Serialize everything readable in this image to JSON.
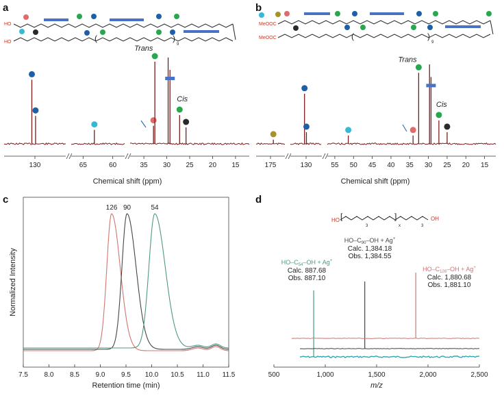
{
  "panels": {
    "a": "a",
    "b": "b",
    "c": "c",
    "d": "d"
  },
  "colors": {
    "spectrum": "#7a1a1a",
    "red": "#e26a6a",
    "blue_dark": "#1f5fa8",
    "cyan": "#36b9d6",
    "green": "#27a84f",
    "black": "#2a2a2a",
    "olive": "#a8922b",
    "bar": "#4a72c4",
    "c126": "#d0756f",
    "c90": "#444444",
    "c54": "#4d9a80",
    "ms_teal": "#2aa7b3"
  },
  "chart_data": [
    {
      "id": "a",
      "type": "line",
      "title": "",
      "xlabel": "Chemical shift (ppm)",
      "ylabel": "",
      "x_ticks": [
        "130",
        "65",
        "60",
        "35",
        "30",
        "25",
        "20",
        "15"
      ],
      "end_groups": [
        "HO",
        "HO"
      ],
      "repeat_subscript": "9",
      "labels": {
        "trans": "Trans",
        "cis": "Cis"
      },
      "peaks": [
        {
          "ppm": 130.5,
          "height": 0.78,
          "marker": "blue_dark"
        },
        {
          "ppm": 129.9,
          "height": 0.34,
          "marker": "blue_dark"
        },
        {
          "ppm": 63.1,
          "height": 0.17,
          "marker": "cyan"
        },
        {
          "ppm": 32.9,
          "height": 0.22,
          "marker": "red"
        },
        {
          "ppm": 32.6,
          "height": 1.0,
          "marker": "green",
          "label": "trans"
        },
        {
          "ppm": 29.7,
          "height": 1.05
        },
        {
          "ppm": 29.3,
          "height": 0.9,
          "marker": "bar"
        },
        {
          "ppm": 27.2,
          "height": 0.35,
          "marker": "green",
          "label": "cis"
        },
        {
          "ppm": 25.8,
          "height": 0.2,
          "marker": "black"
        }
      ]
    },
    {
      "id": "b",
      "type": "line",
      "title": "",
      "xlabel": "Chemical shift (ppm)",
      "ylabel": "",
      "x_ticks": [
        "175",
        "130",
        "55",
        "50",
        "45",
        "40",
        "35",
        "30",
        "25",
        "20",
        "15"
      ],
      "end_groups": [
        "MeOOC",
        "MeOOC"
      ],
      "repeat_subscript": "9",
      "labels": {
        "trans": "Trans",
        "cis": "Cis"
      },
      "peaks": [
        {
          "ppm": 174.0,
          "height": 0.05,
          "marker": "olive"
        },
        {
          "ppm": 130.5,
          "height": 0.6,
          "marker": "blue_dark"
        },
        {
          "ppm": 129.9,
          "height": 0.14,
          "marker": "blue_dark"
        },
        {
          "ppm": 51.4,
          "height": 0.1,
          "marker": "cyan"
        },
        {
          "ppm": 34.1,
          "height": 0.1,
          "marker": "red"
        },
        {
          "ppm": 32.6,
          "height": 0.85,
          "marker": "green",
          "label": "trans"
        },
        {
          "ppm": 29.7,
          "height": 0.95
        },
        {
          "ppm": 29.3,
          "height": 0.8,
          "marker": "bar"
        },
        {
          "ppm": 27.2,
          "height": 0.28,
          "marker": "green",
          "label": "cis"
        },
        {
          "ppm": 25.0,
          "height": 0.14,
          "marker": "black"
        }
      ]
    },
    {
      "id": "c",
      "type": "line",
      "title": "",
      "xlabel": "Retention time (min)",
      "ylabel": "Normalized Intensity",
      "xlim": [
        7.5,
        11.5
      ],
      "x_ticks": [
        "7.5",
        "8.0",
        "8.5",
        "9.0",
        "9.5",
        "10.0",
        "10.5",
        "11.0",
        "11.5"
      ],
      "series": [
        {
          "name": "126",
          "color_key": "c126",
          "peak": 9.22,
          "baseline": 0.0,
          "width": 0.19
        },
        {
          "name": "90",
          "color_key": "c90",
          "peak": 9.52,
          "baseline": 0.0,
          "width": 0.2
        },
        {
          "name": "54",
          "color_key": "c54",
          "peak": 10.06,
          "baseline": 0.0,
          "width": 0.23
        }
      ]
    },
    {
      "id": "d",
      "type": "line",
      "title": "",
      "xlabel": "m/z",
      "ylabel": "",
      "xlim": [
        500,
        2500
      ],
      "x_ticks": [
        "500",
        "1,000",
        "1,500",
        "2,000",
        "2,500"
      ],
      "structure": {
        "left": "HO",
        "right": "OH",
        "sub_a": "3",
        "sub_b": "x",
        "sub_c": "3"
      },
      "series": [
        {
          "label_main": "HO–C",
          "label_sub": "54",
          "label_rest": "–OH + Ag",
          "label_sup": "+",
          "calc": "Calc. 887.68",
          "obs": "Obs. 887.10",
          "mz": 887.1,
          "color_key": "c54"
        },
        {
          "label_main": "HO–C",
          "label_sub": "90",
          "label_rest": "–OH + Ag",
          "label_sup": "+",
          "calc": "Calc. 1,384.18",
          "obs": "Obs. 1,384.55",
          "mz": 1384.55,
          "color_key": "c90"
        },
        {
          "label_main": "HO–C",
          "label_sub": "126",
          "label_rest": "–OH + Ag",
          "label_sup": "+",
          "calc": "Calc. 1,880.68",
          "obs": "Obs. 1,881.10",
          "mz": 1881.1,
          "color_key": "c126"
        }
      ]
    }
  ]
}
